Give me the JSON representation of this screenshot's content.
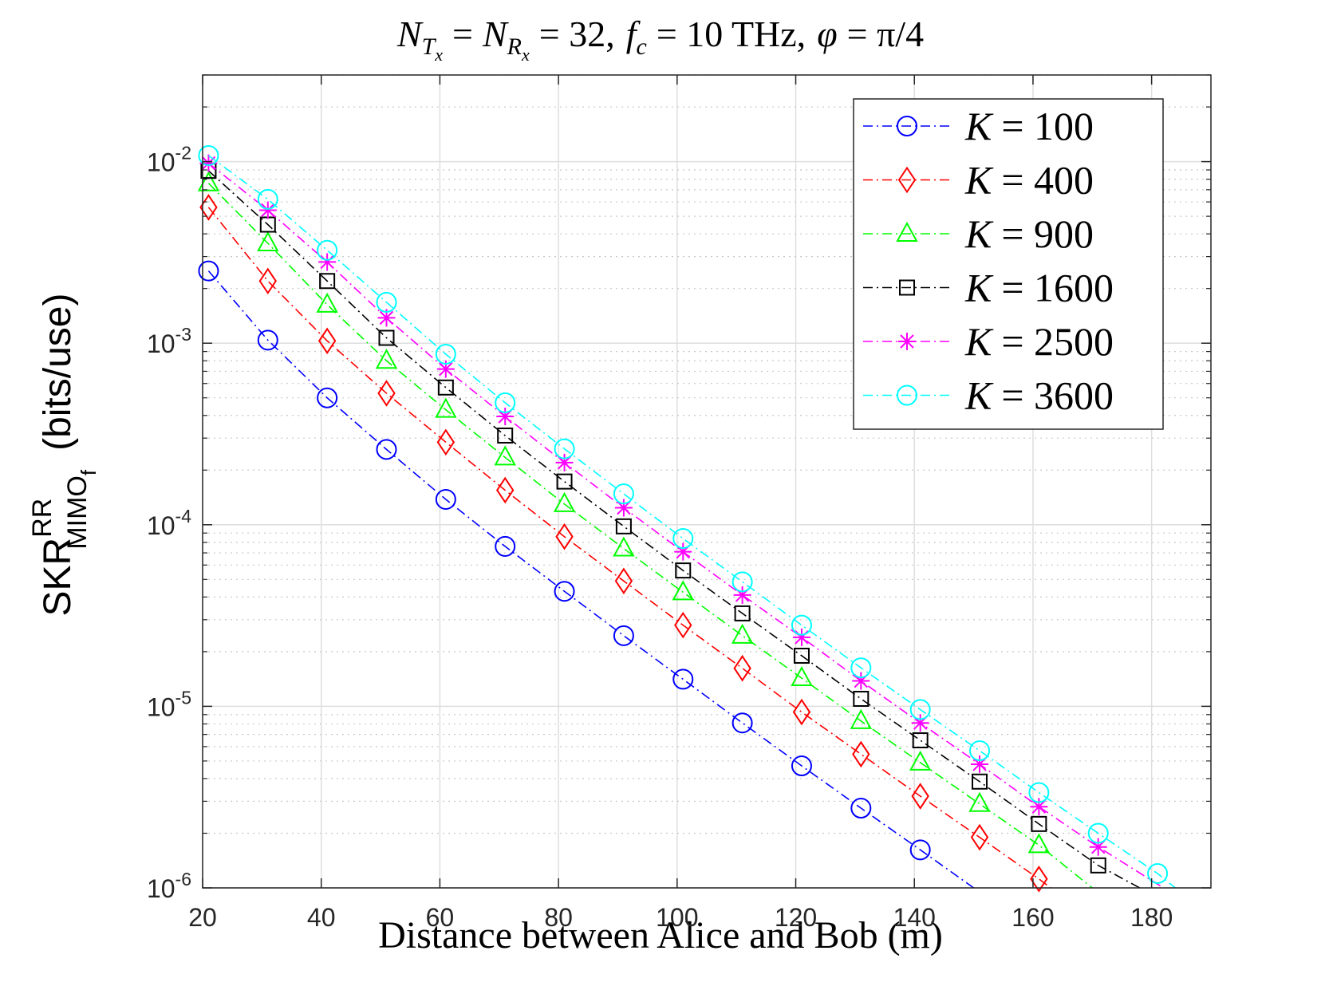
{
  "chart_data": {
    "type": "line",
    "title": "N_Tx = N_Rx = 32, f_c = 10 THz, φ = π/4",
    "title_parts": {
      "n": "N",
      "tx_sub": "T",
      "tx_subsub": "x",
      "eq1": "=",
      "rx_sub": "R",
      "rx_subsub": "x",
      "eq2": "= 32,",
      "f": "f",
      "f_sub": "c",
      "eq3": "= 10 THz,",
      "phi": "φ",
      "eq4": "= π/4"
    },
    "xlabel": "Distance between Alice and Bob (m)",
    "ylabel": {
      "base": "SKR",
      "sup": "RR",
      "sub": "MIMO",
      "subsub": "f",
      "unit": "(bits/use)"
    },
    "x_ticks": [
      "20",
      "40",
      "60",
      "80",
      "100",
      "120",
      "140",
      "160",
      "180"
    ],
    "y_ticks": [
      {
        "base": "10",
        "exp": "-6",
        "value": 1e-06
      },
      {
        "base": "10",
        "exp": "-5",
        "value": 1e-05
      },
      {
        "base": "10",
        "exp": "-4",
        "value": 0.0001
      },
      {
        "base": "10",
        "exp": "-3",
        "value": 0.001
      },
      {
        "base": "10",
        "exp": "-2",
        "value": 0.01
      }
    ],
    "xlim": [
      20,
      190
    ],
    "ylim": [
      1e-06,
      0.03
    ],
    "yscale": "log",
    "grid": true,
    "legend_position": "top-right",
    "series": [
      {
        "name": "K = 100",
        "var": "K",
        "value": "= 100",
        "color": "#0000ff",
        "marker": "circle",
        "x": [
          21,
          31,
          41,
          51,
          61,
          71,
          81,
          91,
          101,
          111,
          121,
          131,
          141
        ],
        "y": [
          0.0025,
          0.00104,
          0.0005,
          0.00026,
          0.000138,
          7.6e-05,
          4.3e-05,
          2.45e-05,
          1.41e-05,
          8.1e-06,
          4.7e-06,
          2.75e-06,
          1.62e-06
        ],
        "tail": [
          150,
          1e-06
        ]
      },
      {
        "name": "K = 400",
        "var": "K",
        "value": "= 400",
        "color": "#ff0000",
        "marker": "diamond",
        "x": [
          21,
          31,
          41,
          51,
          61,
          71,
          81,
          91,
          101,
          111,
          121,
          131,
          141,
          151,
          161
        ],
        "y": [
          0.0056,
          0.0022,
          0.00103,
          0.00053,
          0.000285,
          0.000155,
          8.6e-05,
          4.9e-05,
          2.8e-05,
          1.62e-05,
          9.3e-06,
          5.45e-06,
          3.2e-06,
          1.9e-06,
          1.12e-06
        ],
        "tail": [
          163,
          1e-06
        ]
      },
      {
        "name": "K = 900",
        "var": "K",
        "value": "= 900",
        "color": "#00ff00",
        "marker": "triangle",
        "x": [
          21,
          31,
          41,
          51,
          61,
          71,
          81,
          91,
          101,
          111,
          121,
          131,
          141,
          151,
          161
        ],
        "y": [
          0.0076,
          0.00355,
          0.00163,
          0.0008,
          0.00043,
          0.000235,
          0.00013,
          7.4e-05,
          4.25e-05,
          2.45e-05,
          1.43e-05,
          8.3e-06,
          4.9e-06,
          2.9e-06,
          1.72e-06
        ],
        "tail": [
          170,
          1e-06
        ]
      },
      {
        "name": "K = 1600",
        "var": "K",
        "value": "= 1600",
        "color": "#000000",
        "marker": "square",
        "x": [
          21,
          31,
          41,
          51,
          61,
          71,
          81,
          91,
          101,
          111,
          121,
          131,
          141,
          151,
          161,
          171
        ],
        "y": [
          0.0089,
          0.0045,
          0.0022,
          0.00107,
          0.00057,
          0.00031,
          0.000173,
          9.8e-05,
          5.6e-05,
          3.25e-05,
          1.9e-05,
          1.1e-05,
          6.5e-06,
          3.85e-06,
          2.25e-06,
          1.33e-06
        ],
        "tail": [
          178,
          1e-06
        ]
      },
      {
        "name": "K = 2500",
        "var": "K",
        "value": "= 2500",
        "color": "#ff00ff",
        "marker": "star",
        "x": [
          21,
          31,
          41,
          51,
          61,
          71,
          81,
          91,
          101,
          111,
          121,
          131,
          141,
          151,
          161,
          171
        ],
        "y": [
          0.0098,
          0.0054,
          0.0028,
          0.00138,
          0.00072,
          0.000395,
          0.00022,
          0.000124,
          7.1e-05,
          4.1e-05,
          2.4e-05,
          1.38e-05,
          8.1e-06,
          4.8e-06,
          2.8e-06,
          1.68e-06
        ],
        "tail": [
          182,
          1e-06
        ]
      },
      {
        "name": "K = 3600",
        "var": "K",
        "value": "= 3600",
        "color": "#00ffff",
        "marker": "circle",
        "x": [
          21,
          31,
          41,
          51,
          61,
          71,
          81,
          91,
          101,
          111,
          121,
          131,
          141,
          151,
          161,
          171,
          181
        ],
        "y": [
          0.0108,
          0.0062,
          0.00325,
          0.00168,
          0.00087,
          0.00047,
          0.000262,
          0.000148,
          8.4e-05,
          4.85e-05,
          2.8e-05,
          1.63e-05,
          9.6e-06,
          5.7e-06,
          3.35e-06,
          2e-06,
          1.2e-06
        ],
        "tail": [
          184,
          1e-06
        ]
      }
    ]
  }
}
